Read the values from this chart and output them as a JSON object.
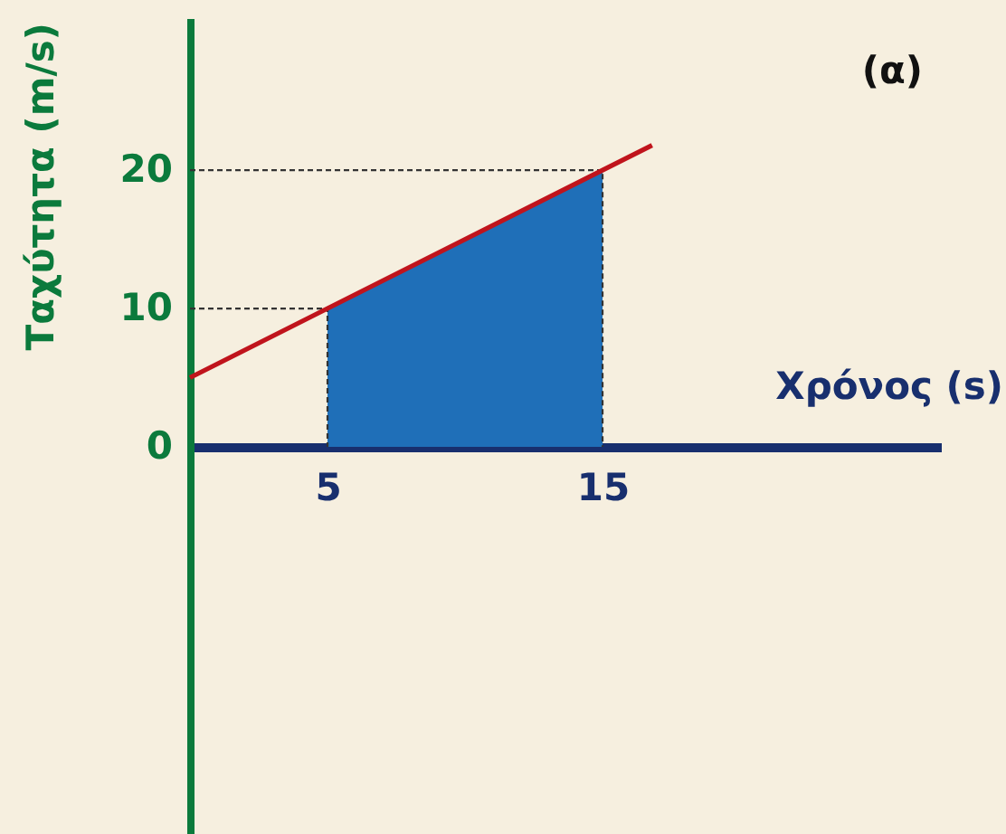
{
  "chart_data": {
    "type": "line",
    "title": "(α)",
    "xlabel": "Χρόνος (s)",
    "ylabel": "Ταχύτητα (m/s)",
    "xlim": [
      0,
      27.3
    ],
    "ylim": [
      -28,
      31
    ],
    "xticks": [
      5,
      15
    ],
    "yticks": [
      0,
      10,
      20
    ],
    "series": [
      {
        "type": "area",
        "color": "#1f6fb8",
        "x": [
          5,
          15
        ],
        "values": [
          10,
          20
        ]
      },
      {
        "type": "line",
        "line_style": "dashed",
        "color": "#333333",
        "x": [
          0,
          5,
          5
        ],
        "values": [
          10,
          10,
          0
        ]
      },
      {
        "type": "line",
        "line_style": "dashed",
        "color": "#333333",
        "x": [
          0,
          15,
          15
        ],
        "values": [
          20,
          20,
          0
        ]
      },
      {
        "type": "line",
        "color": "#c0141c",
        "x": [
          0,
          5,
          15,
          16.8
        ],
        "values": [
          5,
          10,
          20,
          21.8
        ]
      }
    ]
  }
}
